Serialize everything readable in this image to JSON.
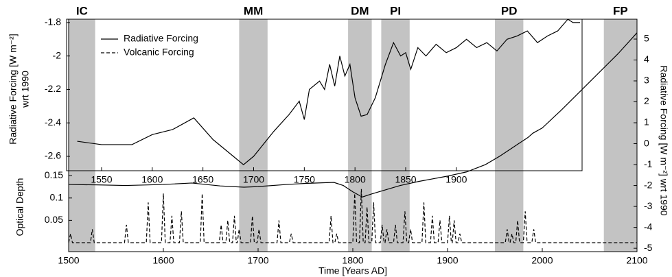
{
  "chart_data": [
    {
      "type": "line",
      "xlabel": "Time [Years AD]",
      "ylabel": "Optical Depth",
      "y2label": "Radiative Forcing [W m⁻²] wrt 1990",
      "xlim": [
        1500,
        2100
      ],
      "xticks": [
        1500,
        1600,
        1700,
        1800,
        1900,
        2000,
        2100
      ],
      "ylim": [
        -0.02,
        0.5
      ],
      "yticks": [
        0.05,
        0.1,
        0.15
      ],
      "y2lim": [
        -5.16,
        5.95
      ],
      "y2ticks": [
        -5,
        -4,
        -3,
        -2,
        -1,
        0,
        1,
        2,
        3,
        4,
        5
      ],
      "periods": [
        {
          "label": "IC",
          "start": 1500,
          "end": 1528
        },
        {
          "label": "MM",
          "start": 1680,
          "end": 1710
        },
        {
          "label": "DM",
          "start": 1795,
          "end": 1820
        },
        {
          "label": "PI",
          "start": 1830,
          "end": 1860
        },
        {
          "label": "PD",
          "start": 1950,
          "end": 1980
        },
        {
          "label": "FP",
          "start": 2065,
          "end": 2100
        }
      ],
      "period_color": "#c3c3c3",
      "series": [
        {
          "name": "Radiative Forcing",
          "color": "#000000",
          "style": "solid",
          "axis": "y2",
          "x": [
            1500,
            1530,
            1560,
            1600,
            1630,
            1660,
            1685,
            1700,
            1730,
            1750,
            1780,
            1790,
            1800,
            1810,
            1820,
            1835,
            1850,
            1870,
            1900,
            1920,
            1940,
            1955,
            1965,
            1975,
            1985,
            1990,
            2000,
            2020,
            2040,
            2060,
            2080,
            2100
          ],
          "values": [
            -1.95,
            -1.97,
            -2.0,
            -1.95,
            -1.88,
            -2.02,
            -2.08,
            -2.05,
            -1.95,
            -1.9,
            -1.85,
            -2.0,
            -2.3,
            -2.55,
            -2.4,
            -2.2,
            -2.0,
            -1.8,
            -1.55,
            -1.35,
            -1.0,
            -0.6,
            -0.3,
            0.0,
            0.3,
            0.5,
            0.75,
            1.6,
            2.5,
            3.4,
            4.3,
            5.3
          ]
        },
        {
          "name": "Volcanic Forcing",
          "color": "#000000",
          "style": "dashed",
          "axis": "y",
          "x": [
            1500,
            1502,
            1504,
            1523,
            1525,
            1527,
            1559,
            1561,
            1563,
            1582,
            1584,
            1586,
            1598,
            1600,
            1602,
            1607,
            1609,
            1611,
            1617,
            1619,
            1621,
            1639,
            1641,
            1643,
            1659,
            1661,
            1663,
            1666,
            1668,
            1670,
            1673,
            1675,
            1677,
            1678,
            1680,
            1682,
            1692,
            1694,
            1696,
            1699,
            1701,
            1703,
            1720,
            1722,
            1724,
            1733,
            1735,
            1737,
            1775,
            1777,
            1779,
            1781,
            1783,
            1785,
            1800,
            1802,
            1804,
            1807,
            1809,
            1811,
            1813,
            1815,
            1817,
            1820,
            1822,
            1824,
            1829,
            1831,
            1833,
            1834,
            1836,
            1838,
            1843,
            1845,
            1847,
            1853,
            1855,
            1857,
            1859,
            1861,
            1863,
            1873,
            1875,
            1877,
            1882,
            1884,
            1886,
            1890,
            1892,
            1894,
            1900,
            1902,
            1904,
            1905,
            1907,
            1909,
            1911,
            1913,
            1915,
            1961,
            1963,
            1965,
            1966,
            1968,
            1970,
            1972,
            1974,
            1976,
            1980,
            1982,
            1984,
            1989,
            1991,
            1993,
            2100
          ],
          "values": [
            0,
            0.02,
            0,
            0,
            0.03,
            0,
            0,
            0.04,
            0,
            0,
            0.09,
            0,
            0,
            0.11,
            0,
            0,
            0.06,
            0,
            0,
            0.07,
            0,
            0,
            0.11,
            0,
            0,
            0.04,
            0,
            0,
            0.05,
            0,
            0,
            0.06,
            0,
            0,
            0.03,
            0,
            0,
            0.06,
            0,
            0,
            0.03,
            0,
            0,
            0.05,
            0,
            0,
            0.02,
            0,
            0,
            0.06,
            0,
            0,
            0.02,
            0,
            0,
            0.11,
            0,
            0,
            0.12,
            0,
            0,
            0.08,
            0,
            0,
            0.09,
            0,
            0,
            0.04,
            0,
            0,
            0.03,
            0,
            0,
            0.04,
            0,
            0,
            0.07,
            0,
            0,
            0.03,
            0,
            0,
            0.09,
            0,
            0,
            0.06,
            0,
            0,
            0.05,
            0,
            0,
            0.06,
            0,
            0,
            0.05,
            0,
            0,
            0.02,
            0,
            0,
            0.03,
            0,
            0,
            0.02,
            0,
            0,
            0.05,
            0,
            0,
            0.07,
            0,
            0,
            0.03,
            0,
            0
          ]
        }
      ]
    },
    {
      "type": "line",
      "ylabel": "Radiative Forcing [W m⁻²]",
      "ylabel_line2": "wrt 1990",
      "xlim": [
        1515.5,
        2024
      ],
      "xticks": [
        1550,
        1600,
        1650,
        1700,
        1750,
        1800,
        1850,
        1900
      ],
      "ylim": [
        -2.686,
        -1.78
      ],
      "yticks": [
        -2.6,
        -2.4,
        -2.2,
        -2,
        -1.8
      ],
      "series": [
        {
          "color": "#000000",
          "style": "solid",
          "x": [
            1526,
            1550,
            1580,
            1600,
            1620,
            1641,
            1660,
            1680,
            1690,
            1700,
            1720,
            1735,
            1745,
            1750,
            1755,
            1765,
            1770,
            1775,
            1780,
            1785,
            1790,
            1795,
            1800,
            1806,
            1812,
            1820,
            1830,
            1838,
            1845,
            1850,
            1855,
            1862,
            1870,
            1880,
            1890,
            1900,
            1910,
            1920,
            1930,
            1940,
            1950,
            1960,
            1970,
            1980,
            1990,
            2000,
            2010,
            2015,
            2022
          ],
          "values": [
            -2.51,
            -2.53,
            -2.53,
            -2.47,
            -2.44,
            -2.37,
            -2.5,
            -2.6,
            -2.65,
            -2.6,
            -2.45,
            -2.35,
            -2.27,
            -2.38,
            -2.2,
            -2.15,
            -2.2,
            -2.05,
            -2.18,
            -2.0,
            -2.12,
            -2.05,
            -2.25,
            -2.36,
            -2.35,
            -2.25,
            -2.05,
            -1.92,
            -2.0,
            -1.98,
            -2.08,
            -1.95,
            -2.0,
            -1.93,
            -1.98,
            -1.95,
            -1.9,
            -1.95,
            -1.92,
            -1.97,
            -1.9,
            -1.88,
            -1.85,
            -1.92,
            -1.88,
            -1.85,
            -1.78,
            -1.8,
            -1.8
          ]
        }
      ]
    }
  ]
}
